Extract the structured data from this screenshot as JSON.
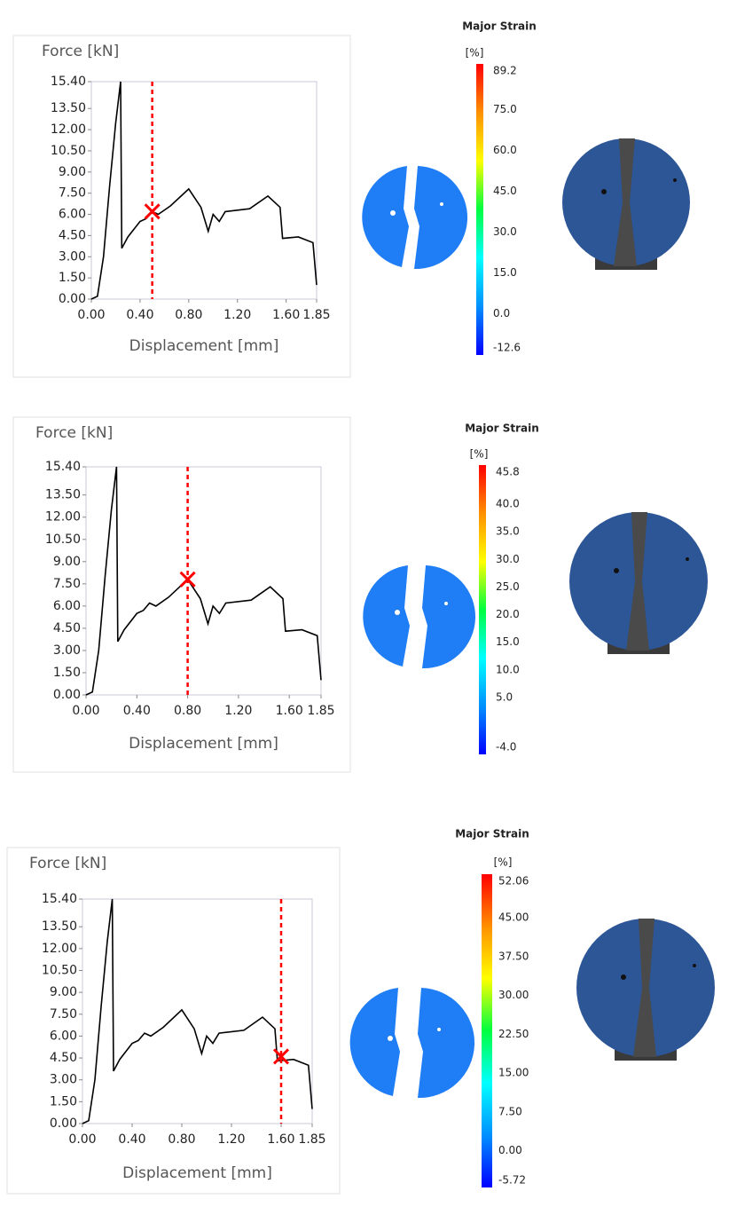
{
  "chart_data": [
    {
      "type": "line",
      "y_label": "Force [kN]",
      "x_label": "Displacement [mm]",
      "x": [
        0.0,
        0.05,
        0.1,
        0.15,
        0.2,
        0.24,
        0.25,
        0.3,
        0.4,
        0.45,
        0.5,
        0.55,
        0.65,
        0.8,
        0.9,
        0.96,
        1.0,
        1.05,
        1.1,
        1.3,
        1.45,
        1.55,
        1.57,
        1.7,
        1.82,
        1.85
      ],
      "values": [
        0.0,
        0.2,
        3.0,
        8.0,
        12.5,
        15.4,
        3.6,
        4.4,
        5.5,
        5.7,
        6.2,
        6.0,
        6.6,
        7.8,
        6.5,
        4.8,
        6.0,
        5.5,
        6.2,
        6.4,
        7.3,
        6.5,
        4.3,
        4.4,
        4.0,
        1.0
      ],
      "color": "#000000",
      "marker": {
        "x": 0.5,
        "y": 6.2,
        "color": "#ff0000"
      },
      "xlim": [
        0,
        1.85
      ],
      "ylim": [
        0,
        15.4
      ],
      "xticks": [
        {
          "value": 0,
          "label": "0.00"
        },
        {
          "value": 0.4,
          "label": "0.40"
        },
        {
          "value": 0.8,
          "label": "0.80"
        },
        {
          "value": 1.2,
          "label": "1.20"
        },
        {
          "value": 1.6,
          "label": "1.60"
        },
        {
          "value": 1.85,
          "label": "1.85"
        }
      ],
      "yticks": [
        {
          "value": 0,
          "label": "0.00"
        },
        {
          "value": 1.5,
          "label": "1.50"
        },
        {
          "value": 3,
          "label": "3.00"
        },
        {
          "value": 4.5,
          "label": "4.50"
        },
        {
          "value": 6,
          "label": "6.00"
        },
        {
          "value": 7.5,
          "label": "7.50"
        },
        {
          "value": 9,
          "label": "9.00"
        },
        {
          "value": 10.5,
          "label": "10.50"
        },
        {
          "value": 12,
          "label": "12.00"
        },
        {
          "value": 13.5,
          "label": "13.50"
        },
        {
          "value": 15.4,
          "label": "15.40"
        }
      ],
      "colorbar": {
        "title": "Major Strain",
        "unit": "[%]",
        "lim": [
          -12.6,
          89.2
        ],
        "ticks": [
          {
            "value": 89.2,
            "label": "89.2"
          },
          {
            "value": 75,
            "label": "75.0"
          },
          {
            "value": 60,
            "label": "60.0"
          },
          {
            "value": 45,
            "label": "45.0"
          },
          {
            "value": 30,
            "label": "30.0"
          },
          {
            "value": 15,
            "label": "15.0"
          },
          {
            "value": 0,
            "label": "0.0"
          },
          {
            "value": -12.6,
            "label": "-12.6"
          }
        ],
        "colors": [
          "#0000ff",
          "#0090ff",
          "#00ffff",
          "#00ff40",
          "#ffff00",
          "#ff9000",
          "#ff0000"
        ]
      }
    },
    {
      "type": "line",
      "y_label": "Force [kN]",
      "x_label": "Displacement [mm]",
      "x": [
        0.0,
        0.05,
        0.1,
        0.15,
        0.2,
        0.24,
        0.25,
        0.3,
        0.4,
        0.45,
        0.5,
        0.55,
        0.65,
        0.8,
        0.9,
        0.96,
        1.0,
        1.05,
        1.1,
        1.3,
        1.45,
        1.55,
        1.57,
        1.7,
        1.82,
        1.85
      ],
      "values": [
        0.0,
        0.2,
        3.0,
        8.0,
        12.5,
        15.4,
        3.6,
        4.4,
        5.5,
        5.7,
        6.2,
        6.0,
        6.6,
        7.8,
        6.5,
        4.8,
        6.0,
        5.5,
        6.2,
        6.4,
        7.3,
        6.5,
        4.3,
        4.4,
        4.0,
        1.0
      ],
      "color": "#000000",
      "marker": {
        "x": 0.8,
        "y": 7.8,
        "color": "#ff0000"
      },
      "xlim": [
        0,
        1.85
      ],
      "ylim": [
        0,
        15.4
      ],
      "xticks": [
        {
          "value": 0,
          "label": "0.00"
        },
        {
          "value": 0.4,
          "label": "0.40"
        },
        {
          "value": 0.8,
          "label": "0.80"
        },
        {
          "value": 1.2,
          "label": "1.20"
        },
        {
          "value": 1.6,
          "label": "1.60"
        },
        {
          "value": 1.85,
          "label": "1.85"
        }
      ],
      "yticks": [
        {
          "value": 0,
          "label": "0.00"
        },
        {
          "value": 1.5,
          "label": "1.50"
        },
        {
          "value": 3,
          "label": "3.00"
        },
        {
          "value": 4.5,
          "label": "4.50"
        },
        {
          "value": 6,
          "label": "6.00"
        },
        {
          "value": 7.5,
          "label": "7.50"
        },
        {
          "value": 9,
          "label": "9.00"
        },
        {
          "value": 10.5,
          "label": "10.50"
        },
        {
          "value": 12,
          "label": "12.00"
        },
        {
          "value": 13.5,
          "label": "13.50"
        },
        {
          "value": 15.4,
          "label": "15.40"
        }
      ],
      "colorbar": {
        "title": "Major Strain",
        "unit": "[%]",
        "lim": [
          -4.0,
          45.8
        ],
        "ticks": [
          {
            "value": 45.8,
            "label": "45.8"
          },
          {
            "value": 40,
            "label": "40.0"
          },
          {
            "value": 35,
            "label": "35.0"
          },
          {
            "value": 30,
            "label": "30.0"
          },
          {
            "value": 25,
            "label": "25.0"
          },
          {
            "value": 20,
            "label": "20.0"
          },
          {
            "value": 15,
            "label": "15.0"
          },
          {
            "value": 10,
            "label": "10.0"
          },
          {
            "value": 5,
            "label": "5.0"
          },
          {
            "value": -4,
            "label": "-4.0"
          }
        ],
        "colors": [
          "#0000ff",
          "#0090ff",
          "#00ffff",
          "#00ff40",
          "#ffff00",
          "#ff9000",
          "#ff0000"
        ]
      }
    },
    {
      "type": "line",
      "y_label": "Force [kN]",
      "x_label": "Displacement [mm]",
      "x": [
        0.0,
        0.05,
        0.1,
        0.15,
        0.2,
        0.24,
        0.25,
        0.3,
        0.4,
        0.45,
        0.5,
        0.55,
        0.65,
        0.8,
        0.9,
        0.96,
        1.0,
        1.05,
        1.1,
        1.3,
        1.45,
        1.55,
        1.57,
        1.7,
        1.82,
        1.85
      ],
      "values": [
        0.0,
        0.2,
        3.0,
        8.0,
        12.5,
        15.4,
        3.6,
        4.4,
        5.5,
        5.7,
        6.2,
        6.0,
        6.6,
        7.8,
        6.5,
        4.8,
        6.0,
        5.5,
        6.2,
        6.4,
        7.3,
        6.5,
        4.3,
        4.4,
        4.0,
        1.0
      ],
      "color": "#000000",
      "marker": {
        "x": 1.6,
        "y": 4.6,
        "color": "#ff0000"
      },
      "xlim": [
        0,
        1.85
      ],
      "ylim": [
        0,
        15.4
      ],
      "xticks": [
        {
          "value": 0,
          "label": "0.00"
        },
        {
          "value": 0.4,
          "label": "0.40"
        },
        {
          "value": 0.8,
          "label": "0.80"
        },
        {
          "value": 1.2,
          "label": "1.20"
        },
        {
          "value": 1.6,
          "label": "1.60"
        },
        {
          "value": 1.85,
          "label": "1.85"
        }
      ],
      "yticks": [
        {
          "value": 0,
          "label": "0.00"
        },
        {
          "value": 1.5,
          "label": "1.50"
        },
        {
          "value": 3,
          "label": "3.00"
        },
        {
          "value": 4.5,
          "label": "4.50"
        },
        {
          "value": 6,
          "label": "6.00"
        },
        {
          "value": 7.5,
          "label": "7.50"
        },
        {
          "value": 9,
          "label": "9.00"
        },
        {
          "value": 10.5,
          "label": "10.50"
        },
        {
          "value": 12,
          "label": "12.00"
        },
        {
          "value": 13.5,
          "label": "13.50"
        },
        {
          "value": 15.4,
          "label": "15.40"
        }
      ],
      "colorbar": {
        "title": "Major Strain",
        "unit": "[%]",
        "lim": [
          -5.72,
          52.06
        ],
        "ticks": [
          {
            "value": 52.06,
            "label": "52.06"
          },
          {
            "value": 45,
            "label": "45.00"
          },
          {
            "value": 37.5,
            "label": "37.50"
          },
          {
            "value": 30,
            "label": "30.00"
          },
          {
            "value": 22.5,
            "label": "22.50"
          },
          {
            "value": 15,
            "label": "15.00"
          },
          {
            "value": 7.5,
            "label": "7.50"
          },
          {
            "value": 0,
            "label": "0.00"
          },
          {
            "value": -5.72,
            "label": "-5.72"
          }
        ],
        "colors": [
          "#0000ff",
          "#0090ff",
          "#00ffff",
          "#00ff40",
          "#ffff00",
          "#ff9000",
          "#ff0000"
        ]
      }
    }
  ]
}
